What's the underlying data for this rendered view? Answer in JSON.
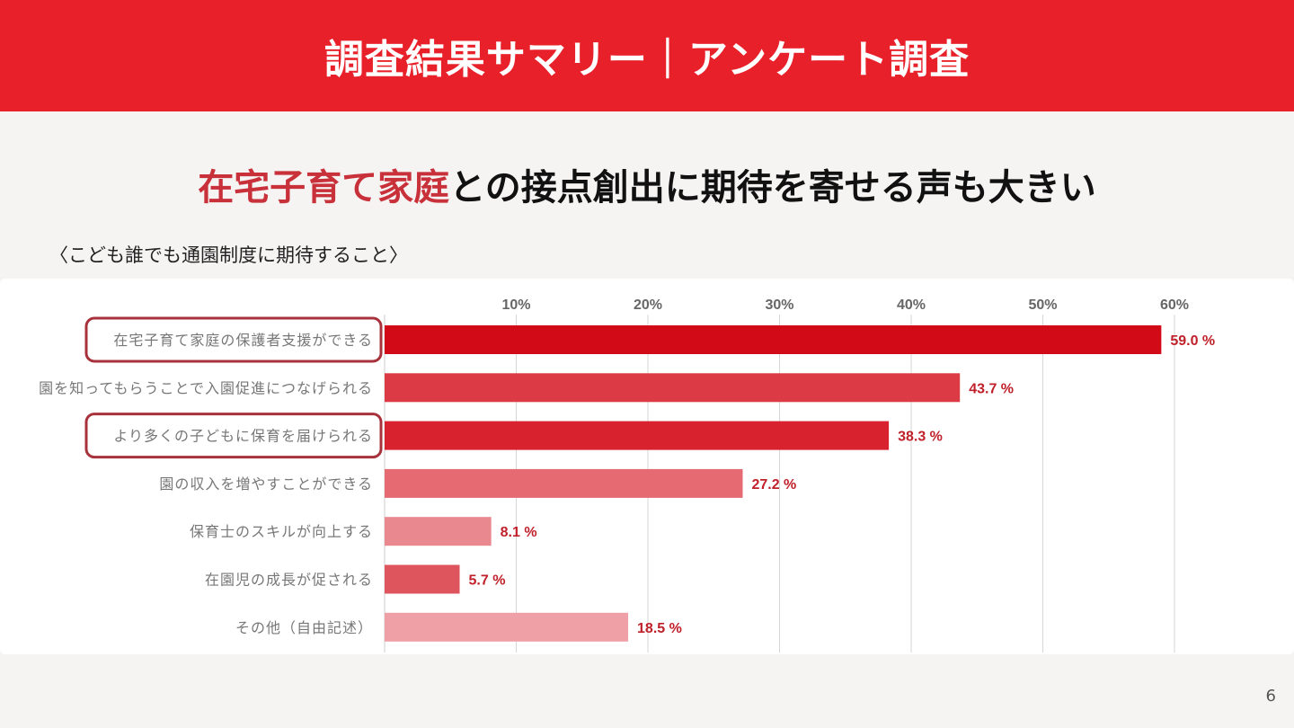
{
  "header": {
    "title": "調査結果サマリー｜アンケート調査"
  },
  "headline": {
    "highlight": "在宅子育て家庭",
    "rest": "との接点創出に期待を寄せる声も大きい"
  },
  "subtitle": "〈こども誰でも通園制度に期待すること〉",
  "page_number": "6",
  "colors": {
    "header": "#e8202a",
    "highlight_text": "#c8303a",
    "value_label": "#c0202a",
    "highlight_box": "#a8323c"
  },
  "chart_data": {
    "type": "bar",
    "orientation": "horizontal",
    "categories": [
      "在宅子育て家庭の保護者支援ができる",
      "園を知ってもらうことで入園促進につなげられる",
      "より多くの子どもに保育を届けられる",
      "園の収入を増やすことができる",
      "保育士のスキルが向上する",
      "在園児の成長が促される",
      "その他（自由記述）"
    ],
    "values": [
      59.0,
      43.7,
      38.3,
      27.2,
      8.1,
      5.7,
      18.5
    ],
    "value_labels": [
      "59.0 %",
      "43.7 %",
      "38.3 %",
      "27.2 %",
      "8.1 %",
      "5.7 %",
      "18.5 %"
    ],
    "bar_colors": [
      "#d20a17",
      "#dc3a44",
      "#d8222e",
      "#e56a72",
      "#ea8890",
      "#df555e",
      "#eea0a6"
    ],
    "highlighted_categories": [
      0,
      2
    ],
    "xticks": [
      "10%",
      "20%",
      "30%",
      "40%",
      "50%",
      "60%"
    ],
    "xtick_values": [
      10,
      20,
      30,
      40,
      50,
      60
    ],
    "xlim": [
      0,
      65
    ],
    "grid": true,
    "xaxis_position": "top"
  }
}
